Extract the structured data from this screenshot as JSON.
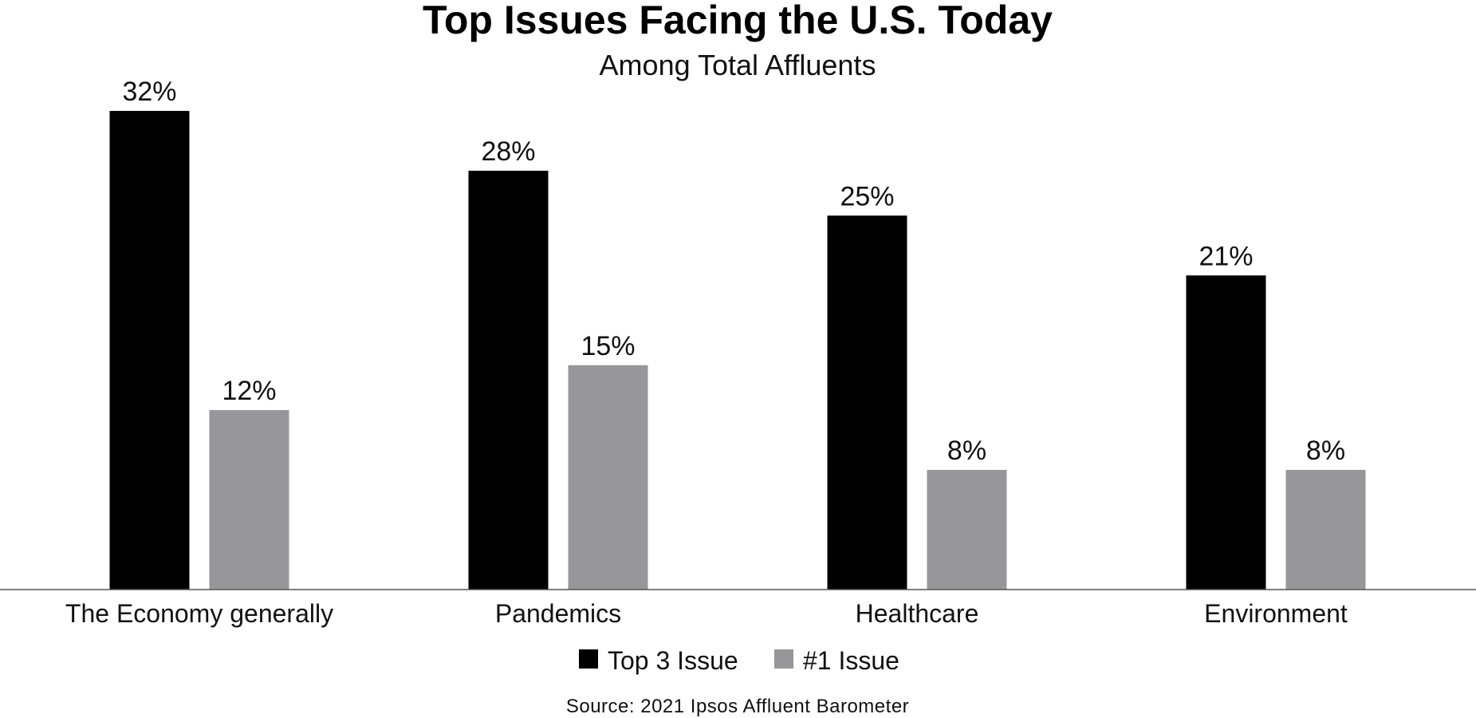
{
  "chart_data": {
    "type": "bar",
    "title": "Top Issues Facing the U.S. Today",
    "subtitle": "Among Total Affluents",
    "categories": [
      "The Economy generally",
      "Pandemics",
      "Healthcare",
      "Environment"
    ],
    "series": [
      {
        "name": "Top 3 Issue",
        "color": "#000000",
        "values": [
          32,
          28,
          25,
          21
        ],
        "labels": [
          "32%",
          "28%",
          "25%",
          "21%"
        ]
      },
      {
        "name": "#1 Issue",
        "color": "#97979a",
        "values": [
          12,
          15,
          8,
          8
        ],
        "labels": [
          "12%",
          "15%",
          "8%",
          "8%"
        ]
      }
    ],
    "xlabel": "",
    "ylabel": "",
    "ylim": [
      0,
      32
    ],
    "grid": false,
    "legend": "bottom-center",
    "source": "Source: 2021 Ipsos Affluent Barometer",
    "axis_color": "#555555"
  }
}
